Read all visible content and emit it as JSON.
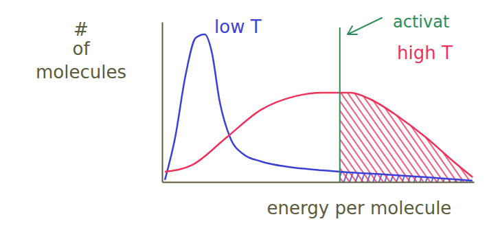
{
  "chart_data": {
    "type": "line",
    "x_label": "energy per molecule",
    "y_label": "# of molecules",
    "xlim": [
      0,
      10
    ],
    "ylim": [
      0,
      10
    ],
    "tick_labels": false,
    "series": [
      {
        "name": "low T",
        "color": "#3a3fd8",
        "x": [
          0.09,
          0.42,
          0.75,
          1.08,
          1.37,
          1.59,
          1.85,
          2.18,
          2.62,
          3.17,
          4.05,
          5.15,
          5.7,
          7.14,
          8.46,
          9.95
        ],
        "values": [
          0.13,
          2.79,
          6.65,
          9.01,
          9.23,
          8.15,
          5.0,
          2.79,
          1.72,
          1.29,
          0.94,
          0.73,
          0.64,
          0.47,
          0.3,
          0.09
        ]
      },
      {
        "name": "high T",
        "color": "#f0305a",
        "x": [
          0.09,
          0.97,
          2.07,
          3.17,
          4.27,
          5.15,
          6.04,
          6.7,
          7.58,
          8.46,
          9.34,
          9.96
        ],
        "values": [
          0.64,
          1.07,
          2.79,
          4.51,
          5.36,
          5.58,
          5.58,
          5.15,
          4.08,
          2.79,
          1.29,
          0.3
        ]
      }
    ],
    "activation": {
      "label": "activat",
      "x": 5.7,
      "color": "#2e8b57"
    }
  }
}
